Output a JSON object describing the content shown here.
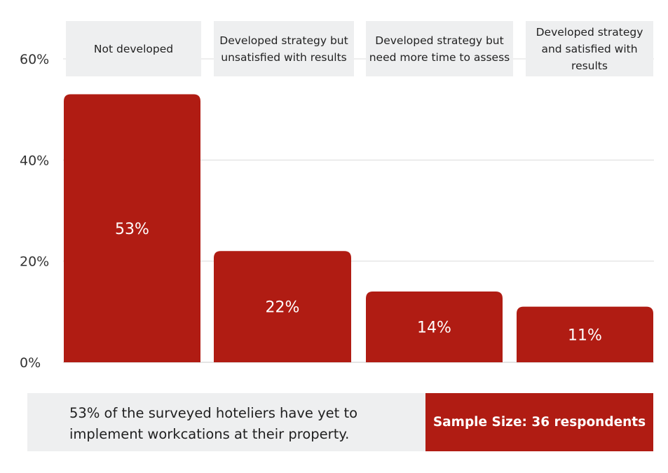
{
  "chart_data": {
    "type": "bar",
    "categories": [
      "Not developed",
      "Developed strategy but unsatisfied with results",
      "Developed strategy but need more time to assess",
      "Developed strategy and satisfied with results"
    ],
    "values": [
      53,
      22,
      14,
      11
    ],
    "value_labels": [
      "53%",
      "22%",
      "14%",
      "11%"
    ],
    "y_ticks": [
      "0%",
      "20%",
      "40%",
      "60%"
    ],
    "ylim": [
      0,
      60
    ],
    "grid": true,
    "bar_color": "#b01c13"
  },
  "footer": {
    "summary": "53% of the surveyed hoteliers have yet to implement workcations at their property.",
    "sample_size": "Sample Size: 36 respondents"
  }
}
